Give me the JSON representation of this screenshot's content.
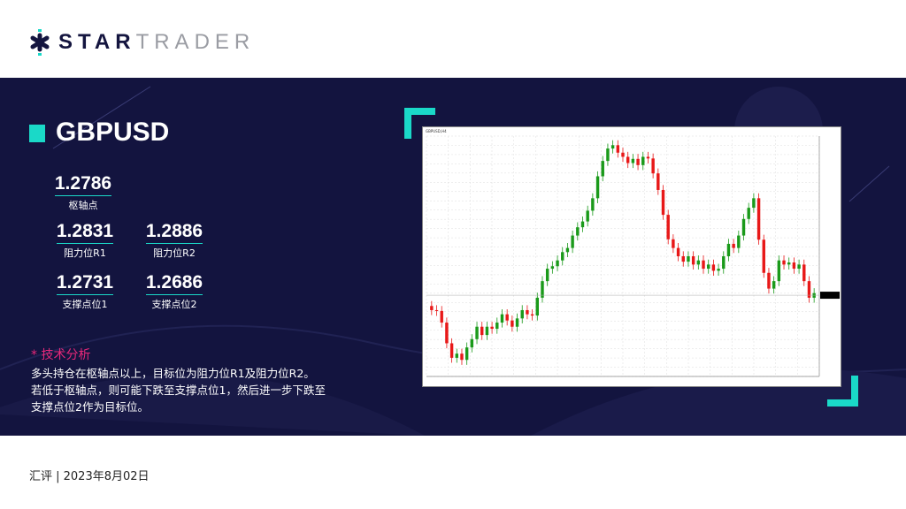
{
  "brand": {
    "logo_part1": "STAR",
    "logo_part2": "TRADER"
  },
  "symbol": "GBPUSD",
  "levels": {
    "pivot": {
      "value": "1.2786",
      "label": "枢轴点"
    },
    "r1": {
      "value": "1.2831",
      "label": "阻力位R1"
    },
    "r2": {
      "value": "1.2886",
      "label": "阻力位R2"
    },
    "s1": {
      "value": "1.2731",
      "label": "支撑点位1"
    },
    "s2": {
      "value": "1.2686",
      "label": "支撑点位2"
    }
  },
  "analysis": {
    "title": "* 技术分析",
    "lines": [
      "多头持仓在枢轴点以上，目标位为阻力位R1及阻力位R2。",
      "若低于枢轴点，则可能下跌至支撑点位1，然后进一步下跌至",
      "支撑点位2作为目标位。"
    ]
  },
  "footer": "汇评 | 2023年8月02日",
  "colors": {
    "background": "#13143f",
    "accent": "#1ad9c8",
    "highlight": "#e8287a",
    "bull": "#1a9a1a",
    "bear": "#e81818"
  },
  "chart_data": {
    "type": "candlestick",
    "symbol_label": "GBPUSD,H4",
    "ylim": [
      1.257,
      1.315
    ],
    "current_price": 1.2766,
    "grid": true,
    "closes": [
      1.273,
      1.2728,
      1.27,
      1.265,
      1.2615,
      1.2625,
      1.261,
      1.264,
      1.266,
      1.269,
      1.267,
      1.269,
      1.2685,
      1.27,
      1.272,
      1.2705,
      1.269,
      1.271,
      1.273,
      1.272,
      1.2717,
      1.276,
      1.28,
      1.283,
      1.2836,
      1.285,
      1.287,
      1.288,
      1.291,
      1.293,
      1.2944,
      1.297,
      1.3,
      1.3053,
      1.309,
      1.312,
      1.3128,
      1.311,
      1.31,
      1.3085,
      1.3095,
      1.308,
      1.31,
      1.3096,
      1.306,
      1.302,
      1.296,
      1.2901,
      1.288,
      1.286,
      1.2847,
      1.286,
      1.284,
      1.285,
      1.283,
      1.284,
      1.2825,
      1.283,
      1.286,
      1.289,
      1.288,
      1.291,
      1.295,
      1.2977,
      1.3,
      1.29,
      1.282,
      1.2782,
      1.28,
      1.285,
      1.284,
      1.2845,
      1.283,
      1.284,
      1.28,
      1.276,
      1.2771
    ]
  }
}
